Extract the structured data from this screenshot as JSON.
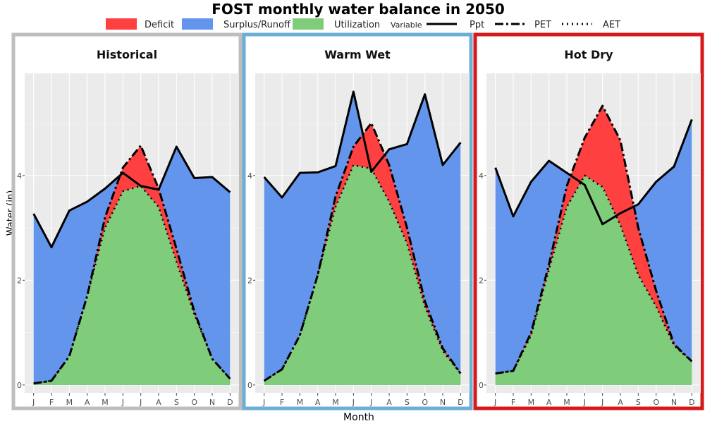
{
  "chart_data": {
    "type": "area",
    "title": "FOST monthly water balance in 2050",
    "xlabel": "Month",
    "ylabel": "Water (in)",
    "ylim": [
      -0.15,
      5.95
    ],
    "yticks": [
      0,
      2,
      4
    ],
    "grid": true,
    "legend_position": "top",
    "legend": {
      "fill_entries": [
        {
          "label": "Deficit",
          "color": "#ff4040"
        },
        {
          "label": "Surplus/Runoff",
          "color": "#6495ed"
        },
        {
          "label": "Utilization",
          "color": "#7fcd7b"
        }
      ],
      "line_title": "Variable",
      "line_entries": [
        {
          "label": "Ppt",
          "style": "solid"
        },
        {
          "label": "PET",
          "style": "dashdot"
        },
        {
          "label": "AET",
          "style": "dotted"
        }
      ]
    },
    "categories": [
      "J",
      "F",
      "M",
      "A",
      "M",
      "J",
      "J",
      "A",
      "S",
      "O",
      "N",
      "D"
    ],
    "panels": [
      {
        "title": "Historical",
        "border_color": "#bebebe",
        "series": [
          {
            "name": "Ppt",
            "values": [
              3.27,
              2.63,
              3.33,
              3.5,
              3.75,
              4.05,
              3.8,
              3.73,
              4.55,
              3.95,
              3.97,
              3.68
            ]
          },
          {
            "name": "PET",
            "values": [
              0.03,
              0.08,
              0.55,
              1.7,
              3.2,
              4.15,
              4.57,
              3.75,
              2.6,
              1.4,
              0.5,
              0.12
            ]
          },
          {
            "name": "AET",
            "values": [
              0.03,
              0.08,
              0.55,
              1.7,
              3.0,
              3.7,
              3.8,
              3.4,
              2.35,
              1.35,
              0.5,
              0.12
            ]
          }
        ]
      },
      {
        "title": "Warm Wet",
        "border_color": "#6baed6",
        "series": [
          {
            "name": "Ppt",
            "values": [
              3.97,
              3.58,
              4.05,
              4.06,
              4.18,
              5.6,
              4.07,
              4.5,
              4.6,
              5.55,
              4.2,
              4.63
            ]
          },
          {
            "name": "PET",
            "values": [
              0.08,
              0.3,
              0.95,
              2.1,
              3.6,
              4.55,
              5.0,
              4.2,
              3.0,
              1.6,
              0.7,
              0.22
            ]
          },
          {
            "name": "AET",
            "values": [
              0.08,
              0.3,
              0.95,
              2.1,
              3.4,
              4.2,
              4.13,
              3.5,
              2.7,
              1.5,
              0.65,
              0.22
            ]
          }
        ]
      },
      {
        "title": "Hot Dry",
        "border_color": "#d7191c",
        "series": [
          {
            "name": "Ppt",
            "values": [
              4.15,
              3.22,
              3.88,
              4.28,
              4.05,
              3.82,
              3.07,
              3.28,
              3.45,
              3.88,
              4.17,
              5.07
            ]
          },
          {
            "name": "PET",
            "values": [
              0.22,
              0.27,
              1.0,
              2.3,
              3.8,
              4.72,
              5.33,
              4.67,
              3.0,
              1.8,
              0.78,
              0.45
            ]
          },
          {
            "name": "AET",
            "values": [
              0.22,
              0.27,
              0.95,
              2.2,
              3.4,
              4.0,
              3.78,
              3.05,
              2.1,
              1.5,
              0.75,
              0.45
            ]
          }
        ]
      }
    ]
  }
}
